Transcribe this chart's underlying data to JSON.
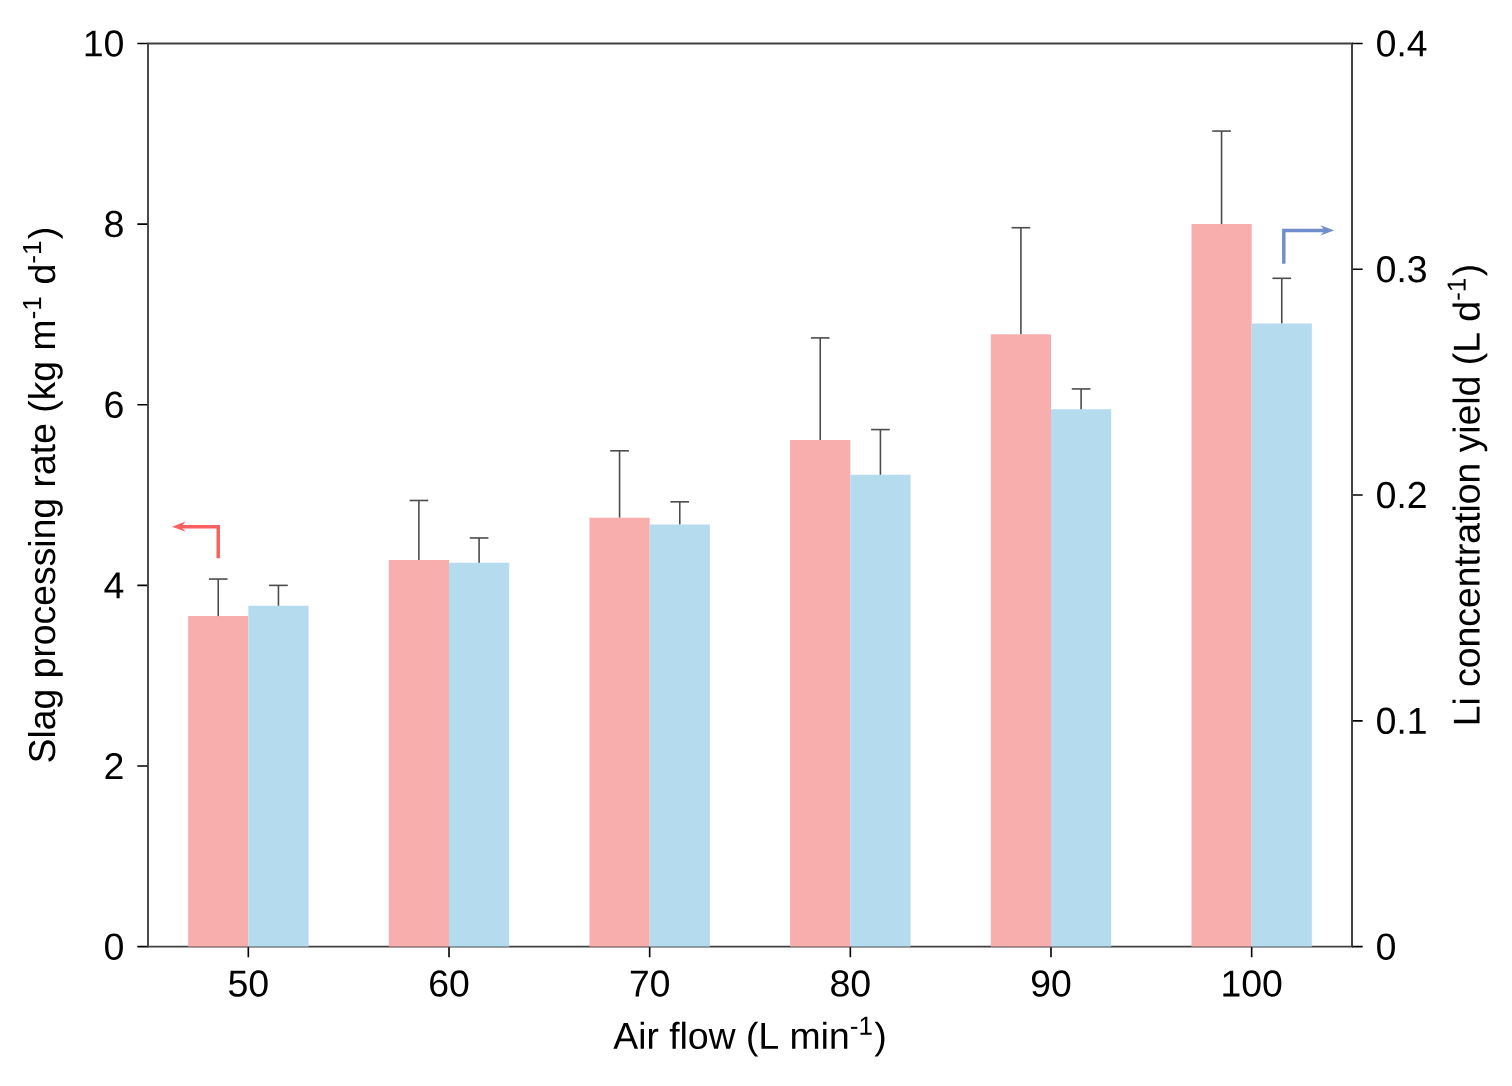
{
  "chart_data": {
    "type": "bar",
    "xlabel": "Air flow (L min$^{-1}$)",
    "ylabel": "Slag processing rate (kg m$^{-1}$ d$^{-1}$)",
    "y2label": "Li concentration yield (L d$^{-1}$)",
    "categories": [
      "50",
      "60",
      "70",
      "80",
      "90",
      "100"
    ],
    "series": [
      {
        "color": "#f9aeae",
        "values": [
          3.66,
          4.28,
          4.75,
          5.61,
          6.78,
          8.0
        ],
        "errors": [
          [
            3.66,
            4.07
          ],
          [
            4.28,
            4.94
          ],
          [
            4.75,
            5.49
          ],
          [
            5.61,
            6.74
          ],
          [
            6.78,
            7.96
          ],
          [
            8.0,
            9.03
          ]
        ]
      },
      {
        "color": "#b5dcee",
        "axis": "y2",
        "values": [
          0.151,
          0.17,
          0.187,
          0.209,
          0.238,
          0.276
        ],
        "errors": [
          [
            0.151,
            0.16
          ],
          [
            0.17,
            0.181
          ],
          [
            0.187,
            0.197
          ],
          [
            0.209,
            0.229
          ],
          [
            0.238,
            0.247
          ],
          [
            0.276,
            0.296
          ]
        ]
      }
    ],
    "ylim": [
      0,
      10
    ],
    "yticks": [
      0,
      2,
      4,
      6,
      8,
      10
    ],
    "y2lim": [
      0,
      0.4
    ],
    "y2ticks": [
      0,
      0.1,
      0.2,
      0.3,
      0.4
    ],
    "grid": false
  }
}
